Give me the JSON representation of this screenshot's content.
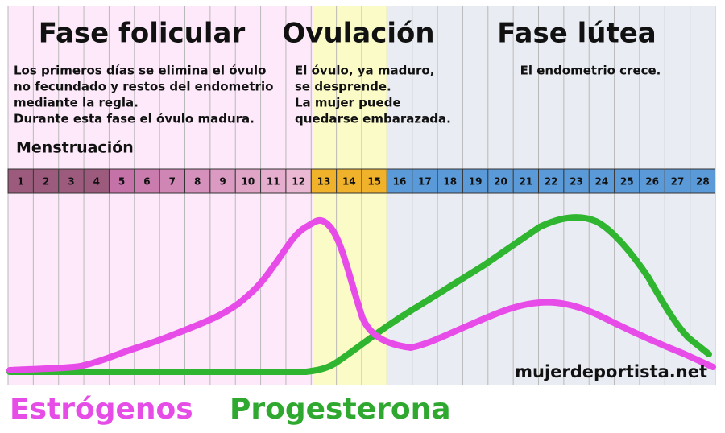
{
  "phases": [
    {
      "title": "Fase folicular",
      "text": [
        "Los primeros días se elimina el óvulo",
        "no fecundado y restos del endometrio",
        "mediante la regla.",
        "Durante esta fase el óvulo madura."
      ]
    },
    {
      "title": "Ovulación",
      "text": [
        "El óvulo, ya maduro,",
        "se desprende.",
        "La mujer puede",
        "quedarse embarazada."
      ]
    },
    {
      "title": "Fase lútea",
      "text": [
        "El endometrio crece."
      ]
    }
  ],
  "menstruation": "Menstruación",
  "days": [
    1,
    2,
    3,
    4,
    5,
    6,
    7,
    8,
    9,
    10,
    11,
    12,
    13,
    14,
    15,
    16,
    17,
    18,
    19,
    20,
    21,
    22,
    23,
    24,
    25,
    26,
    27,
    28
  ],
  "watermark": "mujerdeportista.net",
  "legend": [
    "Estrógenos",
    "Progesterona"
  ]
}
